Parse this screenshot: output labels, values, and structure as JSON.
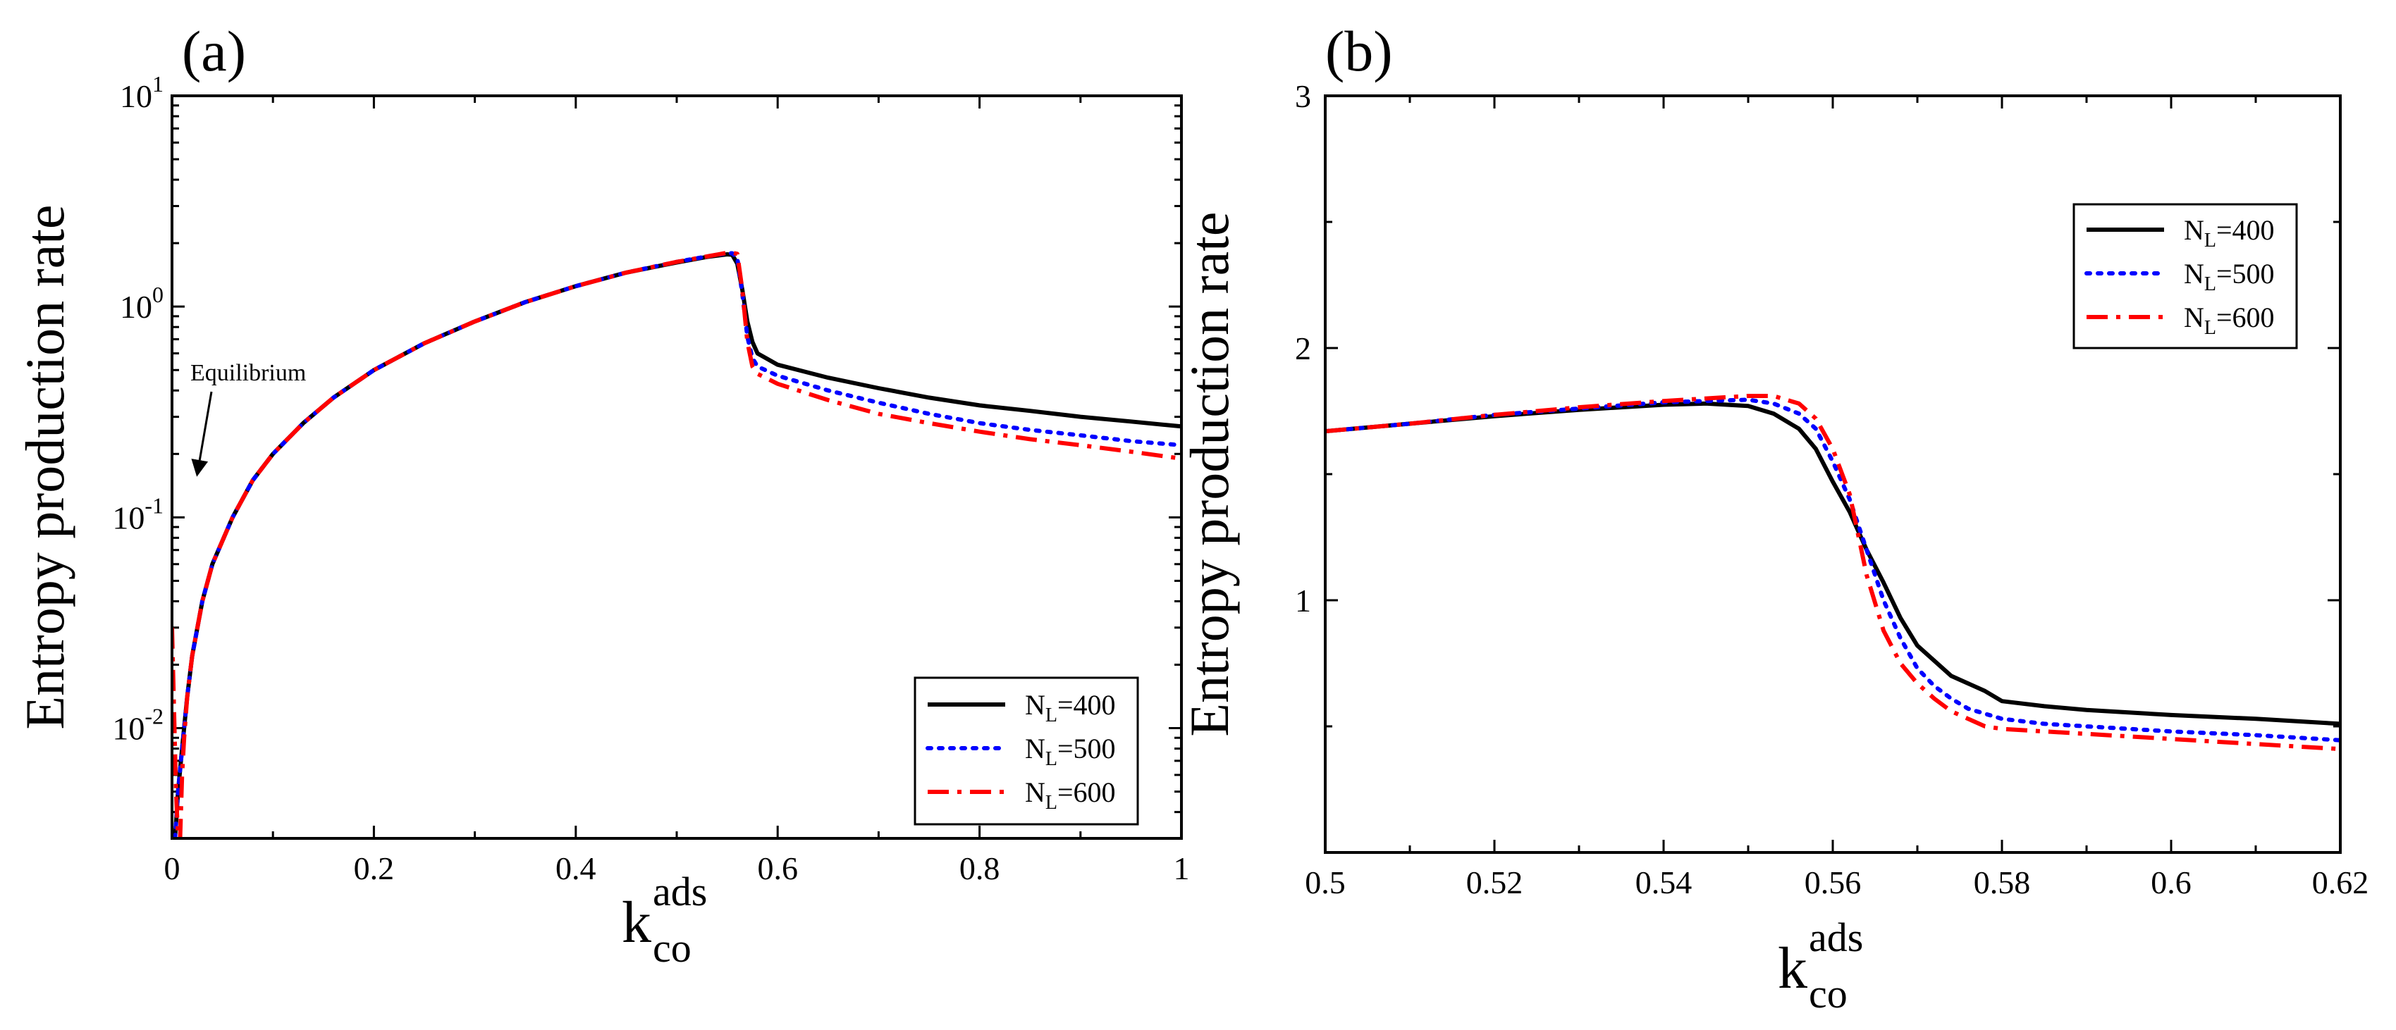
{
  "colors": {
    "NL400": "#000000",
    "NL500": "#0000ff",
    "NL600": "#ff0000"
  },
  "chart_data": [
    {
      "panel": "(a)",
      "type": "line",
      "yscale": "log",
      "xlim": [
        0,
        1
      ],
      "ylim": [
        0.003,
        10
      ],
      "x_ticks": [
        0,
        0.2,
        0.4,
        0.6,
        0.8,
        1
      ],
      "x_tick_labels": [
        "0",
        "0.2",
        "0.4",
        "0.6",
        "0.8",
        "1"
      ],
      "y_tick_labels": [
        {
          "base": "10",
          "exp": "-2",
          "value": 0.01
        },
        {
          "base": "10",
          "exp": "-1",
          "value": 0.1
        },
        {
          "base": "10",
          "exp": "0",
          "value": 1
        },
        {
          "base": "10",
          "exp": "1",
          "value": 10
        }
      ],
      "ylabel": "Entropy production rate",
      "xlabel_main": "k",
      "xlabel_sup": "ads",
      "xlabel_sub": "co",
      "annotation": "Equilibrium",
      "legend_position": "bottom-right",
      "series": [
        {
          "name": "N_L=400",
          "label_main": "N",
          "label_sub": "L",
          "label_rest": "=400",
          "color": "#000000",
          "style": "solid",
          "x": [
            0.003,
            0.006,
            0.01,
            0.015,
            0.02,
            0.03,
            0.04,
            0.06,
            0.08,
            0.1,
            0.13,
            0.16,
            0.2,
            0.25,
            0.3,
            0.35,
            0.4,
            0.45,
            0.5,
            0.53,
            0.55,
            0.555,
            0.56,
            0.565,
            0.57,
            0.575,
            0.58,
            0.6,
            0.65,
            0.7,
            0.75,
            0.8,
            0.85,
            0.9,
            0.95,
            1.0
          ],
          "y": [
            0.003,
            0.005,
            0.008,
            0.014,
            0.022,
            0.04,
            0.06,
            0.1,
            0.15,
            0.2,
            0.28,
            0.37,
            0.5,
            0.67,
            0.85,
            1.05,
            1.25,
            1.45,
            1.62,
            1.72,
            1.77,
            1.76,
            1.6,
            1.2,
            0.85,
            0.68,
            0.6,
            0.53,
            0.46,
            0.41,
            0.37,
            0.34,
            0.32,
            0.3,
            0.285,
            0.27
          ]
        },
        {
          "name": "N_L=500",
          "label_main": "N",
          "label_sub": "L",
          "label_rest": "=500",
          "color": "#0000ff",
          "style": "dotted",
          "x": [
            0.003,
            0.006,
            0.01,
            0.015,
            0.02,
            0.03,
            0.04,
            0.06,
            0.08,
            0.1,
            0.13,
            0.16,
            0.2,
            0.25,
            0.3,
            0.35,
            0.4,
            0.45,
            0.5,
            0.53,
            0.55,
            0.555,
            0.56,
            0.565,
            0.57,
            0.575,
            0.58,
            0.6,
            0.65,
            0.7,
            0.75,
            0.8,
            0.85,
            0.9,
            0.95,
            1.0
          ],
          "y": [
            0.003,
            0.005,
            0.008,
            0.014,
            0.022,
            0.04,
            0.06,
            0.1,
            0.15,
            0.2,
            0.28,
            0.37,
            0.5,
            0.67,
            0.85,
            1.05,
            1.25,
            1.45,
            1.63,
            1.73,
            1.79,
            1.79,
            1.7,
            1.15,
            0.72,
            0.57,
            0.52,
            0.47,
            0.4,
            0.35,
            0.31,
            0.28,
            0.26,
            0.245,
            0.23,
            0.22
          ]
        },
        {
          "name": "N_L=600",
          "label_main": "N",
          "label_sub": "L",
          "label_rest": "=600",
          "color": "#ff0000",
          "style": "dashdot",
          "x": [
            0.0,
            0.002,
            0.004,
            0.006,
            0.008,
            0.01,
            0.012,
            0.015,
            0.02,
            0.03,
            0.04,
            0.06,
            0.08,
            0.1,
            0.13,
            0.16,
            0.2,
            0.25,
            0.3,
            0.35,
            0.4,
            0.45,
            0.5,
            0.53,
            0.55,
            0.555,
            0.56,
            0.565,
            0.57,
            0.575,
            0.58,
            0.6,
            0.65,
            0.7,
            0.75,
            0.8,
            0.85,
            0.9,
            0.95,
            1.0
          ],
          "y": [
            0.03,
            0.012,
            0.005,
            0.003,
            0.003,
            0.006,
            0.009,
            0.014,
            0.022,
            0.04,
            0.06,
            0.1,
            0.15,
            0.2,
            0.28,
            0.37,
            0.5,
            0.67,
            0.85,
            1.05,
            1.25,
            1.45,
            1.63,
            1.73,
            1.8,
            1.8,
            1.78,
            1.2,
            0.68,
            0.52,
            0.48,
            0.43,
            0.36,
            0.31,
            0.28,
            0.255,
            0.235,
            0.22,
            0.205,
            0.19
          ]
        }
      ]
    },
    {
      "panel": "(b)",
      "type": "line",
      "yscale": "linear",
      "xlim": [
        0.5,
        0.62
      ],
      "ylim": [
        0,
        3
      ],
      "x_ticks": [
        0.5,
        0.52,
        0.54,
        0.56,
        0.58,
        0.6,
        0.62
      ],
      "x_tick_labels": [
        "0.5",
        "0.52",
        "0.54",
        "0.56",
        "0.58",
        "0.6",
        "0.62"
      ],
      "y_ticks": [
        1,
        2,
        3
      ],
      "y_tick_labels": [
        "1",
        "2",
        "3"
      ],
      "ylabel": "Entropy production rate",
      "xlabel_main": "k",
      "xlabel_sup": "ads",
      "xlabel_sub": "co",
      "legend_position": "top-right",
      "series": [
        {
          "name": "N_L=400",
          "label_main": "N",
          "label_sub": "L",
          "label_rest": "=400",
          "color": "#000000",
          "style": "solid",
          "x": [
            0.5,
            0.51,
            0.52,
            0.53,
            0.54,
            0.545,
            0.55,
            0.553,
            0.556,
            0.558,
            0.56,
            0.562,
            0.564,
            0.566,
            0.568,
            0.57,
            0.572,
            0.574,
            0.576,
            0.578,
            0.58,
            0.585,
            0.59,
            0.6,
            0.61,
            0.62
          ],
          "y": [
            1.67,
            1.7,
            1.73,
            1.755,
            1.775,
            1.78,
            1.77,
            1.74,
            1.68,
            1.6,
            1.47,
            1.35,
            1.2,
            1.07,
            0.93,
            0.82,
            0.76,
            0.7,
            0.67,
            0.64,
            0.6,
            0.58,
            0.565,
            0.545,
            0.53,
            0.51
          ]
        },
        {
          "name": "N_L=500",
          "label_main": "N",
          "label_sub": "L",
          "label_rest": "=500",
          "color": "#0000ff",
          "style": "dotted",
          "x": [
            0.5,
            0.51,
            0.52,
            0.53,
            0.54,
            0.545,
            0.55,
            0.553,
            0.556,
            0.558,
            0.56,
            0.562,
            0.564,
            0.566,
            0.568,
            0.57,
            0.572,
            0.574,
            0.576,
            0.578,
            0.58,
            0.585,
            0.59,
            0.6,
            0.61,
            0.62
          ],
          "y": [
            1.67,
            1.7,
            1.735,
            1.76,
            1.785,
            1.79,
            1.795,
            1.78,
            1.74,
            1.68,
            1.55,
            1.4,
            1.2,
            1.0,
            0.85,
            0.73,
            0.66,
            0.61,
            0.57,
            0.55,
            0.53,
            0.51,
            0.5,
            0.48,
            0.465,
            0.445
          ]
        },
        {
          "name": "N_L=600",
          "label_main": "N",
          "label_sub": "L",
          "label_rest": "=600",
          "color": "#ff0000",
          "style": "dashdot",
          "x": [
            0.5,
            0.51,
            0.52,
            0.53,
            0.54,
            0.545,
            0.55,
            0.553,
            0.556,
            0.558,
            0.56,
            0.562,
            0.564,
            0.566,
            0.568,
            0.57,
            0.572,
            0.574,
            0.576,
            0.578,
            0.58,
            0.585,
            0.59,
            0.6,
            0.61,
            0.62
          ],
          "y": [
            1.67,
            1.7,
            1.735,
            1.765,
            1.79,
            1.8,
            1.81,
            1.81,
            1.78,
            1.72,
            1.6,
            1.42,
            1.1,
            0.88,
            0.75,
            0.67,
            0.61,
            0.56,
            0.53,
            0.5,
            0.49,
            0.48,
            0.47,
            0.45,
            0.43,
            0.41
          ]
        }
      ]
    }
  ]
}
